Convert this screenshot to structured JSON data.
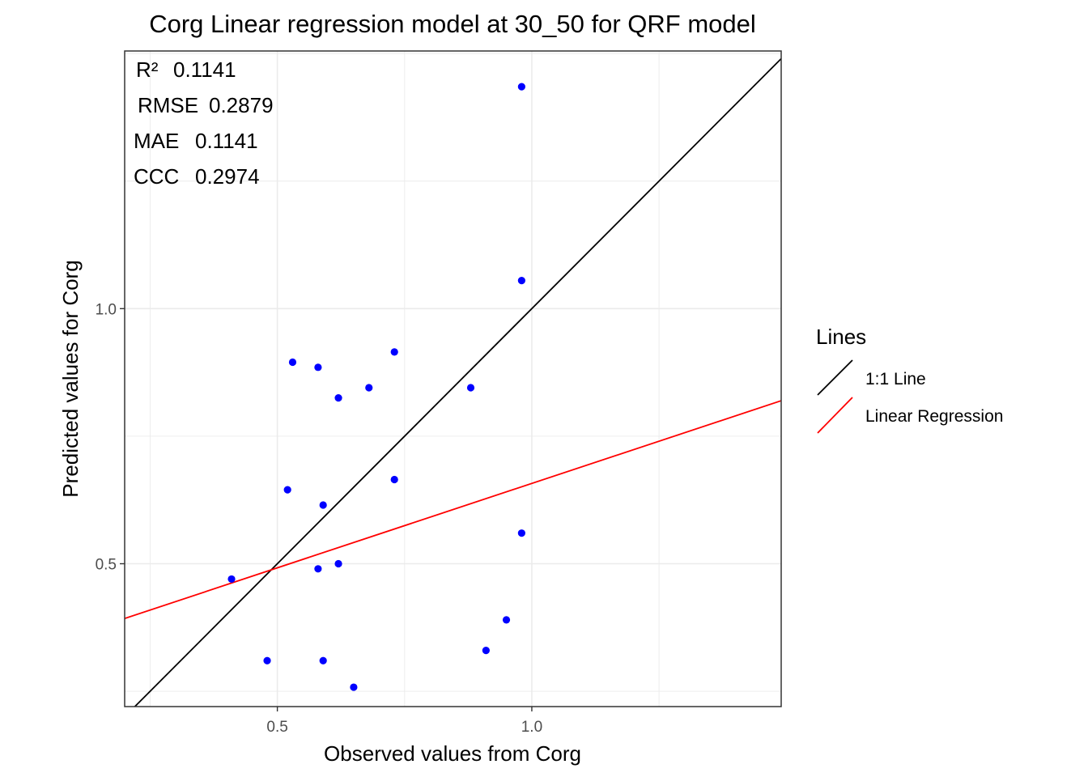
{
  "chart_data": {
    "type": "scatter",
    "title": "Corg  Linear regression model at  30_50  for  QRF  model",
    "xlabel": "Observed values from Corg",
    "ylabel": "Predicted values for Corg",
    "xlim": [
      0.2,
      1.49
    ],
    "ylim": [
      0.22,
      1.505
    ],
    "x_ticks": [
      0.5,
      1.0
    ],
    "x_tick_labels": [
      "0.5",
      "1.0"
    ],
    "y_ticks": [
      0.5,
      1.0
    ],
    "y_tick_labels": [
      "0.5",
      "1.0"
    ],
    "grid": true,
    "point_color": "#0000ff",
    "points": [
      {
        "x": 0.98,
        "y": 1.435
      },
      {
        "x": 0.98,
        "y": 1.055
      },
      {
        "x": 0.73,
        "y": 0.915
      },
      {
        "x": 0.53,
        "y": 0.895
      },
      {
        "x": 0.58,
        "y": 0.885
      },
      {
        "x": 0.68,
        "y": 0.845
      },
      {
        "x": 0.88,
        "y": 0.845
      },
      {
        "x": 0.62,
        "y": 0.825
      },
      {
        "x": 0.73,
        "y": 0.665
      },
      {
        "x": 0.52,
        "y": 0.645
      },
      {
        "x": 0.59,
        "y": 0.615
      },
      {
        "x": 0.98,
        "y": 0.56
      },
      {
        "x": 0.62,
        "y": 0.5
      },
      {
        "x": 0.58,
        "y": 0.49
      },
      {
        "x": 0.41,
        "y": 0.47
      },
      {
        "x": 0.95,
        "y": 0.39
      },
      {
        "x": 0.91,
        "y": 0.33
      },
      {
        "x": 0.48,
        "y": 0.31
      },
      {
        "x": 0.59,
        "y": 0.31
      },
      {
        "x": 0.65,
        "y": 0.258
      }
    ],
    "lines": [
      {
        "name": "1:1 Line",
        "color": "#000000",
        "intercept": 0.0,
        "slope": 1.0
      },
      {
        "name": "Linear Regression",
        "color": "#ff0000",
        "intercept": 0.3265,
        "slope": 0.3309
      }
    ],
    "legend": {
      "title": "Lines",
      "position": "right"
    },
    "annotations": [
      {
        "label": "R²",
        "value": "0.1141"
      },
      {
        "label": "RMSE",
        "value": "0.2879"
      },
      {
        "label": "MAE",
        "value": "0.1141"
      },
      {
        "label": "CCC",
        "value": "0.2974"
      }
    ]
  }
}
